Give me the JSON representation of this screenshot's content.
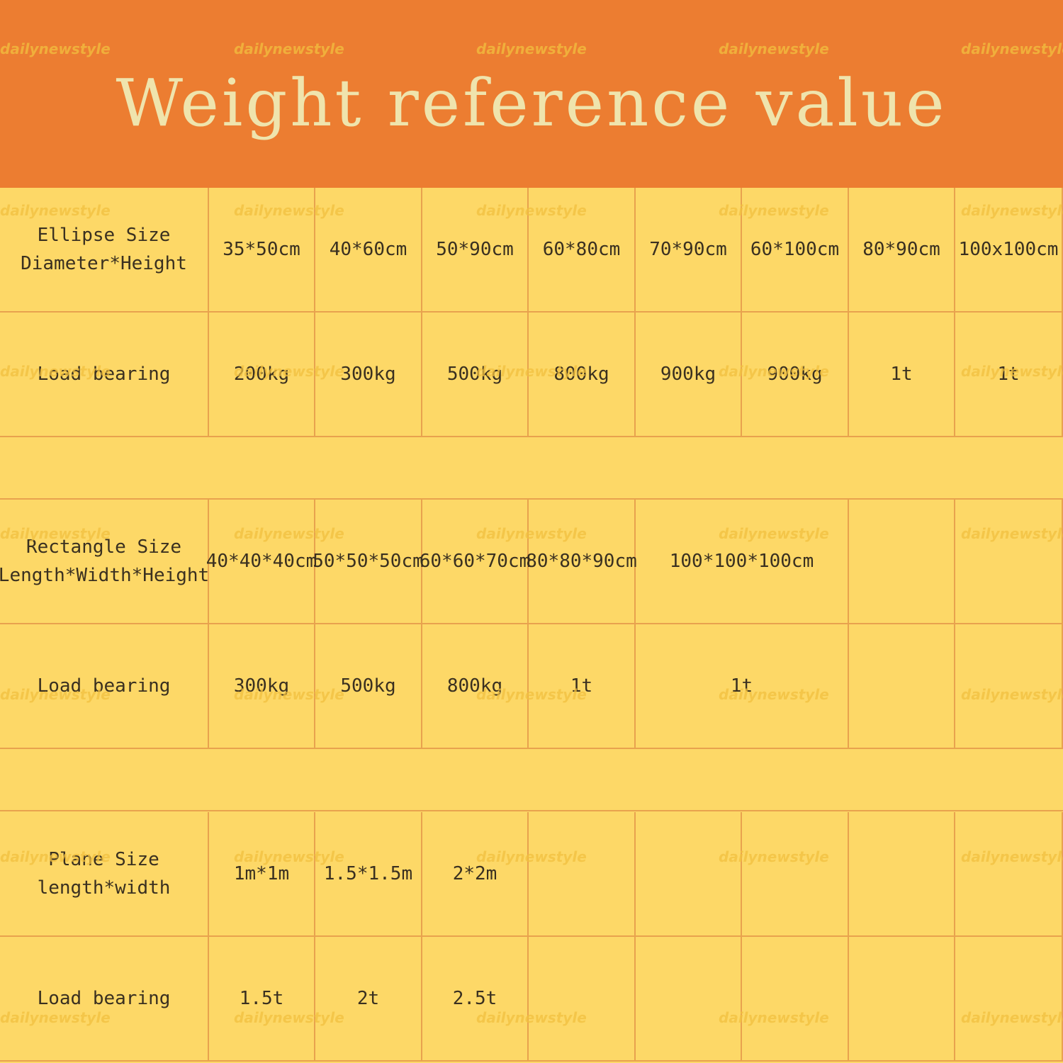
{
  "title": "Weight reference value",
  "watermark": "dailynewstyle",
  "colors": {
    "header": "#ec7d31",
    "table": "#fdd867",
    "grid": "#e8a24e",
    "title_text": "#efe4ad"
  },
  "sections": [
    {
      "size_label": "Ellipse Size\nDiameter*Height",
      "sizes": [
        "35*50cm",
        "40*60cm",
        "50*90cm",
        "60*80cm",
        "70*90cm",
        "60*100cm",
        "80*90cm",
        "100x100cm"
      ],
      "load_label": "Load bearing",
      "loads": [
        "200kg",
        "300kg",
        "500kg",
        "800kg",
        "900kg",
        "900kg",
        "1t",
        "1t"
      ]
    },
    {
      "size_label": "Rectangle Size\nLength*Width*Height",
      "sizes": [
        "40*40*40cm",
        "50*50*50cm",
        "60*60*70cm",
        "80*80*90cm",
        "100*100*100cm",
        "",
        ""
      ],
      "load_label": "Load bearing",
      "loads": [
        "300kg",
        "500kg",
        "800kg",
        "1t",
        "1t",
        "",
        ""
      ]
    },
    {
      "size_label": "Plane Size\nlength*width",
      "sizes": [
        "1m*1m",
        "1.5*1.5m",
        "2*2m",
        "",
        "",
        "",
        "",
        ""
      ],
      "load_label": "Load bearing",
      "loads": [
        "1.5t",
        "2t",
        "2.5t",
        "",
        "",
        "",
        "",
        ""
      ]
    }
  ]
}
